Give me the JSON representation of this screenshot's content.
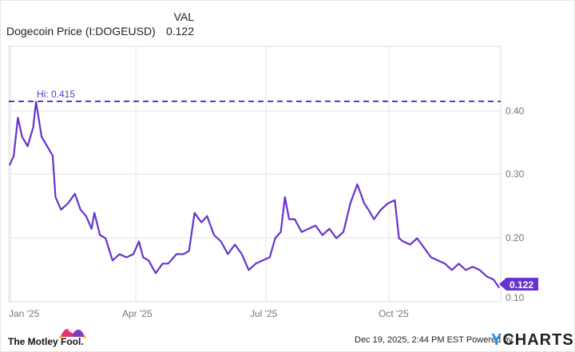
{
  "header": {
    "series_name": "Dogecoin Price (I:DOGEUSD)",
    "column_label": "VAL",
    "current_value": "0.122"
  },
  "chart_data": {
    "type": "line",
    "title": "Dogecoin Price (I:DOGEUSD)",
    "xlabel": "",
    "ylabel": "",
    "x_ticks": [
      "Jan '25",
      "Apr '25",
      "Jul '25",
      "Oct '25"
    ],
    "y_ticks": [
      "0.10",
      "0.20",
      "0.30",
      "0.40"
    ],
    "ylim": [
      0.1,
      0.45
    ],
    "grid": true,
    "legend": "none",
    "series": [
      {
        "name": "Dogecoin Price (I:DOGEUSD)",
        "color": "#6633cc",
        "x": [
          "2025-01-01",
          "2025-01-04",
          "2025-01-07",
          "2025-01-10",
          "2025-01-14",
          "2025-01-18",
          "2025-01-20",
          "2025-01-24",
          "2025-01-28",
          "2025-02-01",
          "2025-02-03",
          "2025-02-07",
          "2025-02-12",
          "2025-02-17",
          "2025-02-21",
          "2025-02-25",
          "2025-03-01",
          "2025-03-03",
          "2025-03-07",
          "2025-03-11",
          "2025-03-16",
          "2025-03-21",
          "2025-03-26",
          "2025-03-31",
          "2025-04-04",
          "2025-04-07",
          "2025-04-11",
          "2025-04-16",
          "2025-04-21",
          "2025-04-25",
          "2025-05-01",
          "2025-05-06",
          "2025-05-10",
          "2025-05-14",
          "2025-05-19",
          "2025-05-23",
          "2025-05-28",
          "2025-06-02",
          "2025-06-07",
          "2025-06-12",
          "2025-06-17",
          "2025-06-22",
          "2025-06-27",
          "2025-07-02",
          "2025-07-07",
          "2025-07-11",
          "2025-07-15",
          "2025-07-18",
          "2025-07-21",
          "2025-07-25",
          "2025-07-30",
          "2025-08-04",
          "2025-08-09",
          "2025-08-14",
          "2025-08-19",
          "2025-08-24",
          "2025-08-29",
          "2025-09-03",
          "2025-09-08",
          "2025-09-13",
          "2025-09-16",
          "2025-09-20",
          "2025-09-25",
          "2025-09-30",
          "2025-10-05",
          "2025-10-08",
          "2025-10-11",
          "2025-10-16",
          "2025-10-21",
          "2025-10-26",
          "2025-10-31",
          "2025-11-05",
          "2025-11-10",
          "2025-11-15",
          "2025-11-20",
          "2025-11-25",
          "2025-11-30",
          "2025-12-05",
          "2025-12-10",
          "2025-12-15",
          "2025-12-19"
        ],
        "values": [
          0.315,
          0.33,
          0.39,
          0.36,
          0.345,
          0.375,
          0.415,
          0.36,
          0.345,
          0.33,
          0.265,
          0.245,
          0.255,
          0.27,
          0.245,
          0.235,
          0.215,
          0.24,
          0.205,
          0.2,
          0.165,
          0.175,
          0.17,
          0.175,
          0.195,
          0.17,
          0.165,
          0.145,
          0.16,
          0.16,
          0.175,
          0.175,
          0.18,
          0.24,
          0.225,
          0.235,
          0.205,
          0.195,
          0.175,
          0.19,
          0.175,
          0.15,
          0.16,
          0.165,
          0.17,
          0.2,
          0.21,
          0.265,
          0.23,
          0.23,
          0.21,
          0.215,
          0.22,
          0.205,
          0.215,
          0.2,
          0.21,
          0.255,
          0.285,
          0.255,
          0.245,
          0.23,
          0.245,
          0.255,
          0.26,
          0.2,
          0.195,
          0.19,
          0.2,
          0.185,
          0.17,
          0.165,
          0.16,
          0.15,
          0.16,
          0.15,
          0.155,
          0.15,
          0.14,
          0.135,
          0.122
        ]
      }
    ],
    "annotations": [
      {
        "type": "hline",
        "label": "Hi: 0.415",
        "value": 0.415,
        "style": "dashed"
      },
      {
        "type": "end-label",
        "label": "0.122",
        "value": 0.122
      }
    ]
  },
  "footer": {
    "timestamp": "Dec 19, 2025, 2:44 PM EST",
    "powered_by": "Powered by",
    "brand_y": "Y",
    "brand_rest": "CHARTS",
    "logo_text": "The Motley Fool."
  },
  "colors": {
    "line": "#6633cc",
    "grid": "#ebebeb",
    "axis_text": "#777777",
    "ycharts_y": "#1e88e5"
  }
}
